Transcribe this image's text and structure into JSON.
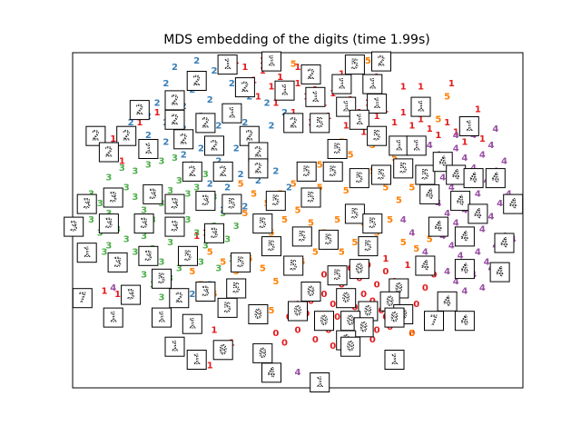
{
  "chart_data": {
    "type": "scatter",
    "title": "MDS embedding of the digits (time 1.99s)",
    "xlabel": "",
    "ylabel": "",
    "xlim": [
      0,
      1
    ],
    "ylim": [
      0,
      1
    ],
    "grid": false,
    "axis_ticks": false,
    "marker": "digit text",
    "colors": {
      "0": "#e41a1c",
      "1": "#e41a1c",
      "2": "#377eb8",
      "3": "#4daf4a",
      "4": "#984ea3",
      "5": "#ff7f00"
    },
    "series": [
      {
        "label": "0",
        "points": [
          [
            0.53,
            0.25
          ],
          [
            0.56,
            0.27
          ],
          [
            0.58,
            0.24
          ],
          [
            0.61,
            0.26
          ],
          [
            0.63,
            0.23
          ],
          [
            0.65,
            0.27
          ],
          [
            0.67,
            0.25
          ],
          [
            0.69,
            0.22
          ],
          [
            0.52,
            0.21
          ],
          [
            0.55,
            0.19
          ],
          [
            0.59,
            0.2
          ],
          [
            0.62,
            0.18
          ],
          [
            0.66,
            0.19
          ],
          [
            0.7,
            0.2
          ],
          [
            0.72,
            0.24
          ],
          [
            0.74,
            0.27
          ],
          [
            0.5,
            0.24
          ],
          [
            0.48,
            0.2
          ],
          [
            0.57,
            0.16
          ],
          [
            0.6,
            0.14
          ],
          [
            0.64,
            0.15
          ],
          [
            0.68,
            0.16
          ],
          [
            0.71,
            0.17
          ],
          [
            0.75,
            0.21
          ],
          [
            0.77,
            0.24
          ],
          [
            0.54,
            0.13
          ],
          [
            0.58,
            0.11
          ],
          [
            0.63,
            0.12
          ],
          [
            0.67,
            0.13
          ],
          [
            0.73,
            0.18
          ],
          [
            0.45,
            0.15
          ],
          [
            0.47,
            0.12
          ],
          [
            0.79,
            0.29
          ],
          [
            0.81,
            0.33
          ],
          [
            0.6,
            0.3
          ],
          [
            0.64,
            0.32
          ],
          [
            0.68,
            0.3
          ],
          [
            0.72,
            0.31
          ],
          [
            0.56,
            0.33
          ],
          [
            0.62,
            0.35
          ],
          [
            0.66,
            0.36
          ],
          [
            0.7,
            0.34
          ],
          [
            0.5,
            0.16
          ],
          [
            0.53,
            0.29
          ],
          [
            0.76,
            0.15
          ]
        ]
      },
      {
        "label": "1",
        "points": [
          [
            0.38,
            0.97
          ],
          [
            0.4,
            0.93
          ],
          [
            0.42,
            0.96
          ],
          [
            0.44,
            0.91
          ],
          [
            0.46,
            0.94
          ],
          [
            0.48,
            0.9
          ],
          [
            0.5,
            0.92
          ],
          [
            0.52,
            0.88
          ],
          [
            0.54,
            0.9
          ],
          [
            0.56,
            0.86
          ],
          [
            0.58,
            0.89
          ],
          [
            0.6,
            0.85
          ],
          [
            0.62,
            0.87
          ],
          [
            0.64,
            0.83
          ],
          [
            0.66,
            0.86
          ],
          [
            0.68,
            0.82
          ],
          [
            0.7,
            0.84
          ],
          [
            0.72,
            0.8
          ],
          [
            0.74,
            0.83
          ],
          [
            0.76,
            0.79
          ],
          [
            0.78,
            0.81
          ],
          [
            0.8,
            0.78
          ],
          [
            0.82,
            0.76
          ],
          [
            0.84,
            0.8
          ],
          [
            0.86,
            0.77
          ],
          [
            0.88,
            0.74
          ],
          [
            0.9,
            0.78
          ],
          [
            0.92,
            0.75
          ],
          [
            0.57,
            0.82
          ],
          [
            0.61,
            0.79
          ],
          [
            0.65,
            0.77
          ],
          [
            0.69,
            0.75
          ],
          [
            0.73,
            0.73
          ],
          [
            0.77,
            0.72
          ],
          [
            0.53,
            0.8
          ],
          [
            0.49,
            0.83
          ],
          [
            0.45,
            0.86
          ],
          [
            0.41,
            0.88
          ],
          [
            0.06,
            0.72
          ],
          [
            0.08,
            0.75
          ],
          [
            0.12,
            0.76
          ],
          [
            0.1,
            0.68
          ],
          [
            0.14,
            0.8
          ],
          [
            0.18,
            0.83
          ],
          [
            0.06,
            0.28
          ],
          [
            0.09,
            0.27
          ],
          [
            0.3,
            0.05
          ],
          [
            0.33,
            0.08
          ],
          [
            0.29,
            0.46
          ],
          [
            0.27,
            0.45
          ],
          [
            0.7,
            0.38
          ],
          [
            0.75,
            0.36
          ],
          [
            0.35,
            0.12
          ],
          [
            0.31,
            0.16
          ],
          [
            0.74,
            0.91
          ],
          [
            0.36,
            0.99
          ],
          [
            0.42,
            0.99
          ],
          [
            0.5,
            0.97
          ],
          [
            0.6,
            0.95
          ],
          [
            0.68,
            0.94
          ],
          [
            0.78,
            0.91
          ],
          [
            0.85,
            0.92
          ],
          [
            0.91,
            0.84
          ]
        ]
      },
      {
        "label": "2",
        "points": [
          [
            0.2,
            0.92
          ],
          [
            0.22,
            0.88
          ],
          [
            0.24,
            0.85
          ],
          [
            0.26,
            0.9
          ],
          [
            0.28,
            0.94
          ],
          [
            0.3,
            0.87
          ],
          [
            0.18,
            0.86
          ],
          [
            0.16,
            0.82
          ],
          [
            0.14,
            0.85
          ],
          [
            0.12,
            0.8
          ],
          [
            0.1,
            0.76
          ],
          [
            0.08,
            0.73
          ],
          [
            0.2,
            0.8
          ],
          [
            0.24,
            0.78
          ],
          [
            0.28,
            0.82
          ],
          [
            0.32,
            0.79
          ],
          [
            0.35,
            0.84
          ],
          [
            0.38,
            0.8
          ],
          [
            0.4,
            0.75
          ],
          [
            0.42,
            0.7
          ],
          [
            0.36,
            0.72
          ],
          [
            0.32,
            0.68
          ],
          [
            0.28,
            0.72
          ],
          [
            0.24,
            0.7
          ],
          [
            0.2,
            0.74
          ],
          [
            0.16,
            0.76
          ],
          [
            0.26,
            0.64
          ],
          [
            0.3,
            0.61
          ],
          [
            0.34,
            0.6
          ],
          [
            0.37,
            0.64
          ],
          [
            0.41,
            0.62
          ],
          [
            0.22,
            0.97
          ],
          [
            0.27,
            0.99
          ],
          [
            0.31,
            0.96
          ],
          [
            0.35,
            0.92
          ],
          [
            0.44,
            0.79
          ],
          [
            0.47,
            0.83
          ],
          [
            0.39,
            0.88
          ],
          [
            0.43,
            0.86
          ],
          [
            0.45,
            0.65
          ],
          [
            0.48,
            0.6
          ],
          [
            0.38,
            0.54
          ],
          [
            0.33,
            0.53
          ],
          [
            0.3,
            0.3
          ],
          [
            0.26,
            0.27
          ]
        ]
      },
      {
        "label": "3",
        "points": [
          [
            0.03,
            0.58
          ],
          [
            0.05,
            0.55
          ],
          [
            0.07,
            0.52
          ],
          [
            0.09,
            0.56
          ],
          [
            0.11,
            0.6
          ],
          [
            0.13,
            0.57
          ],
          [
            0.15,
            0.53
          ],
          [
            0.17,
            0.5
          ],
          [
            0.19,
            0.55
          ],
          [
            0.21,
            0.59
          ],
          [
            0.23,
            0.62
          ],
          [
            0.25,
            0.58
          ],
          [
            0.27,
            0.6
          ],
          [
            0.29,
            0.64
          ],
          [
            0.31,
            0.57
          ],
          [
            0.03,
            0.5
          ],
          [
            0.05,
            0.46
          ],
          [
            0.07,
            0.42
          ],
          [
            0.09,
            0.47
          ],
          [
            0.11,
            0.44
          ],
          [
            0.13,
            0.4
          ],
          [
            0.15,
            0.45
          ],
          [
            0.17,
            0.41
          ],
          [
            0.19,
            0.37
          ],
          [
            0.21,
            0.43
          ],
          [
            0.23,
            0.47
          ],
          [
            0.25,
            0.5
          ],
          [
            0.27,
            0.46
          ],
          [
            0.29,
            0.42
          ],
          [
            0.31,
            0.48
          ],
          [
            0.33,
            0.52
          ],
          [
            0.15,
            0.33
          ],
          [
            0.17,
            0.3
          ],
          [
            0.19,
            0.26
          ],
          [
            0.21,
            0.32
          ],
          [
            0.23,
            0.35
          ],
          [
            0.25,
            0.39
          ],
          [
            0.07,
            0.63
          ],
          [
            0.1,
            0.66
          ],
          [
            0.13,
            0.65
          ],
          [
            0.16,
            0.67
          ],
          [
            0.19,
            0.68
          ],
          [
            0.22,
            0.69
          ],
          [
            0.26,
            0.67
          ],
          [
            0.08,
            0.36
          ],
          [
            0.06,
            0.4
          ],
          [
            0.34,
            0.44
          ],
          [
            0.36,
            0.48
          ],
          [
            0.35,
            0.38
          ],
          [
            0.32,
            0.35
          ],
          [
            0.28,
            0.37
          ]
        ]
      },
      {
        "label": "4",
        "points": [
          [
            0.8,
            0.73
          ],
          [
            0.82,
            0.7
          ],
          [
            0.84,
            0.67
          ],
          [
            0.86,
            0.72
          ],
          [
            0.88,
            0.69
          ],
          [
            0.9,
            0.66
          ],
          [
            0.92,
            0.7
          ],
          [
            0.94,
            0.73
          ],
          [
            0.83,
            0.63
          ],
          [
            0.85,
            0.6
          ],
          [
            0.87,
            0.57
          ],
          [
            0.89,
            0.61
          ],
          [
            0.91,
            0.58
          ],
          [
            0.93,
            0.62
          ],
          [
            0.95,
            0.65
          ],
          [
            0.97,
            0.68
          ],
          [
            0.82,
            0.55
          ],
          [
            0.84,
            0.52
          ],
          [
            0.86,
            0.49
          ],
          [
            0.88,
            0.53
          ],
          [
            0.9,
            0.5
          ],
          [
            0.92,
            0.47
          ],
          [
            0.94,
            0.51
          ],
          [
            0.96,
            0.55
          ],
          [
            0.83,
            0.45
          ],
          [
            0.85,
            0.42
          ],
          [
            0.87,
            0.39
          ],
          [
            0.89,
            0.43
          ],
          [
            0.91,
            0.4
          ],
          [
            0.93,
            0.37
          ],
          [
            0.95,
            0.42
          ],
          [
            0.97,
            0.45
          ],
          [
            0.84,
            0.34
          ],
          [
            0.86,
            0.31
          ],
          [
            0.88,
            0.28
          ],
          [
            0.9,
            0.33
          ],
          [
            0.92,
            0.29
          ],
          [
            0.94,
            0.35
          ],
          [
            0.98,
            0.58
          ],
          [
            0.99,
            0.44
          ],
          [
            0.86,
            0.76
          ],
          [
            0.9,
            0.76
          ],
          [
            0.95,
            0.78
          ],
          [
            0.74,
            0.5
          ],
          [
            0.76,
            0.46
          ],
          [
            0.79,
            0.4
          ],
          [
            0.08,
            0.29
          ],
          [
            0.5,
            0.03
          ]
        ]
      },
      {
        "label": "5",
        "points": [
          [
            0.37,
            0.61
          ],
          [
            0.4,
            0.58
          ],
          [
            0.43,
            0.55
          ],
          [
            0.46,
            0.58
          ],
          [
            0.49,
            0.61
          ],
          [
            0.52,
            0.57
          ],
          [
            0.55,
            0.6
          ],
          [
            0.58,
            0.63
          ],
          [
            0.61,
            0.59
          ],
          [
            0.64,
            0.62
          ],
          [
            0.67,
            0.65
          ],
          [
            0.7,
            0.6
          ],
          [
            0.73,
            0.56
          ],
          [
            0.76,
            0.6
          ],
          [
            0.79,
            0.63
          ],
          [
            0.38,
            0.52
          ],
          [
            0.41,
            0.49
          ],
          [
            0.44,
            0.46
          ],
          [
            0.47,
            0.5
          ],
          [
            0.5,
            0.53
          ],
          [
            0.53,
            0.49
          ],
          [
            0.56,
            0.46
          ],
          [
            0.59,
            0.5
          ],
          [
            0.62,
            0.53
          ],
          [
            0.65,
            0.49
          ],
          [
            0.68,
            0.46
          ],
          [
            0.71,
            0.5
          ],
          [
            0.74,
            0.43
          ],
          [
            0.77,
            0.41
          ],
          [
            0.8,
            0.44
          ],
          [
            0.3,
            0.4
          ],
          [
            0.33,
            0.37
          ],
          [
            0.36,
            0.34
          ],
          [
            0.39,
            0.38
          ],
          [
            0.42,
            0.35
          ],
          [
            0.45,
            0.31
          ],
          [
            0.48,
            0.34
          ],
          [
            0.51,
            0.37
          ],
          [
            0.54,
            0.4
          ],
          [
            0.57,
            0.43
          ],
          [
            0.6,
            0.4
          ],
          [
            0.63,
            0.43
          ],
          [
            0.66,
            0.4
          ],
          [
            0.26,
            0.34
          ],
          [
            0.28,
            0.3
          ],
          [
            0.31,
            0.27
          ],
          [
            0.34,
            0.24
          ],
          [
            0.44,
            0.22
          ],
          [
            0.62,
            0.7
          ],
          [
            0.67,
            0.73
          ],
          [
            0.72,
            0.69
          ],
          [
            0.78,
            0.74
          ],
          [
            0.82,
            0.81
          ],
          [
            0.84,
            0.88
          ],
          [
            0.49,
            0.98
          ],
          [
            0.53,
            0.96
          ],
          [
            0.66,
            0.99
          ],
          [
            0.76,
            0.15
          ],
          [
            0.6,
            0.74
          ],
          [
            0.55,
            0.67
          ]
        ]
      }
    ]
  }
}
